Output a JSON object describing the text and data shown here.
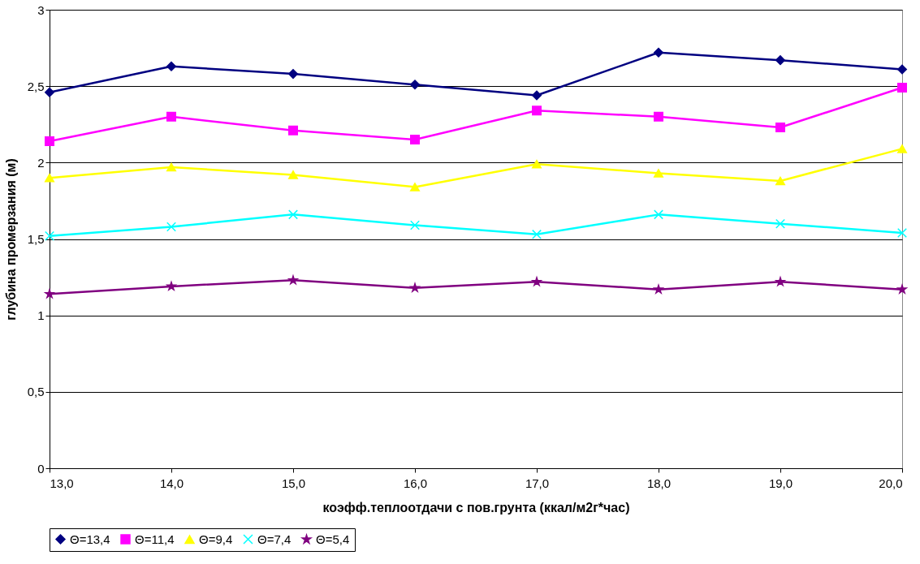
{
  "chart_data": {
    "type": "line",
    "xlabel": "коэфф.теплоотдачи с пов.грунта (ккал/м2г*час)",
    "ylabel": "глубина промерзания (м)",
    "categories": [
      "13,0",
      "14,0",
      "15,0",
      "16,0",
      "17,0",
      "18,0",
      "19,0",
      "20,0"
    ],
    "ylim": [
      0,
      3
    ],
    "yticks": [
      0,
      {
        "value": 0.5,
        "label": "0,5"
      },
      1,
      {
        "value": 1.5,
        "label": "1,5"
      },
      2,
      {
        "value": 2.5,
        "label": "2,5"
      },
      3
    ],
    "grid": "y",
    "legend": "bottom",
    "line_style": "solid",
    "series": [
      {
        "name": "Θ=13,4",
        "color": "#000080",
        "marker": "diamond",
        "values": [
          2.46,
          2.63,
          2.58,
          2.51,
          2.44,
          2.72,
          2.67,
          2.61
        ]
      },
      {
        "name": "Θ=11,4",
        "color": "#ff00ff",
        "marker": "square",
        "values": [
          2.14,
          2.3,
          2.21,
          2.15,
          2.34,
          2.3,
          2.23,
          2.49
        ]
      },
      {
        "name": "Θ=9,4",
        "color": "#ffff00",
        "marker": "triangle",
        "values": [
          1.9,
          1.97,
          1.92,
          1.84,
          1.99,
          1.93,
          1.88,
          2.09
        ]
      },
      {
        "name": "Θ=7,4",
        "color": "#00ffff",
        "marker": "cross",
        "values": [
          1.52,
          1.58,
          1.66,
          1.59,
          1.53,
          1.66,
          1.6,
          1.54
        ]
      },
      {
        "name": "Θ=5,4",
        "color": "#800080",
        "marker": "star",
        "values": [
          1.14,
          1.19,
          1.23,
          1.18,
          1.22,
          1.17,
          1.22,
          1.17
        ]
      }
    ]
  }
}
